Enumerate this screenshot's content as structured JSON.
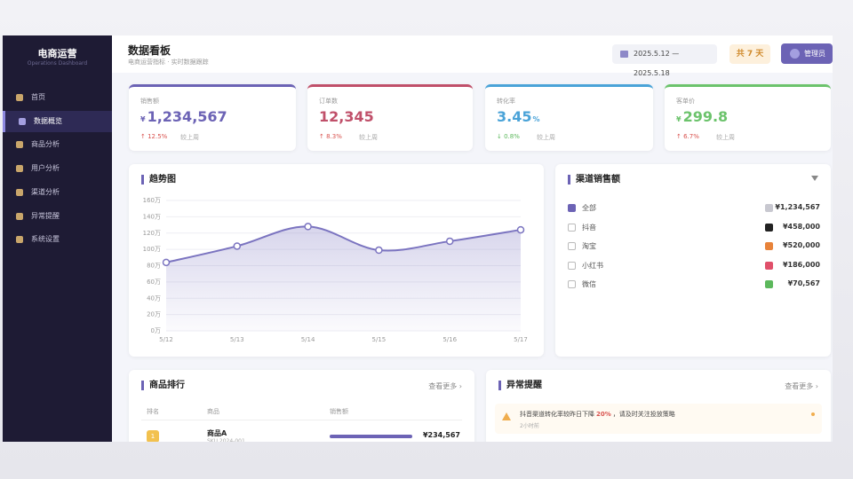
{
  "sidebar": {
    "title": "电商运营",
    "subtitle": "Operations Dashboard",
    "menu": [
      "首页",
      "数据概览",
      "商品分析",
      "用户分析",
      "渠道分析",
      "异常提醒",
      "系统设置"
    ],
    "active": 1
  },
  "header": {
    "title": "数据看板",
    "subtitle": "电商运营指标 · 实时数据跟踪",
    "date_range": "2025.5.12 — 2025.5.18",
    "days": "共 7 天",
    "user": "管理员"
  },
  "kpis": [
    {
      "label": "销售额",
      "prefix": "¥",
      "value": "1,234,567",
      "change": "↑ 12.5%",
      "compare": "较上周",
      "color": "#6c63b5",
      "change_color": "#d9534f"
    },
    {
      "label": "订单数",
      "value": "12,345",
      "change": "↑ 8.3%",
      "compare": "较上周",
      "color": "#c0506a",
      "change_color": "#d9534f"
    },
    {
      "label": "转化率",
      "value": "3.45",
      "suffix": "%",
      "change": "↓ 0.8%",
      "compare": "较上周",
      "color": "#4aa3d8",
      "change_color": "#5cb85c"
    },
    {
      "label": "客单价",
      "prefix": "¥",
      "value": "299.8",
      "change": "↑ 6.7%",
      "compare": "较上周",
      "color": "#6cc36c",
      "change_color": "#d9534f"
    }
  ],
  "trend": {
    "title": "趋势图",
    "x": [
      "5/12",
      "5/13",
      "5/14",
      "5/15",
      "5/16",
      "5/17"
    ],
    "values": [
      84,
      104,
      128,
      99,
      110,
      124
    ],
    "ylim": [
      0,
      160
    ],
    "yticks": [
      {
        "value": 0,
        "label": "0万"
      },
      {
        "value": 20,
        "label": "20万"
      },
      {
        "value": 40,
        "label": "40万"
      },
      {
        "value": 60,
        "label": "60万"
      },
      {
        "value": 80,
        "label": "80万"
      },
      {
        "value": 100,
        "label": "100万"
      },
      {
        "value": 120,
        "label": "120万"
      },
      {
        "value": 140,
        "label": "140万"
      },
      {
        "value": 160,
        "label": "160万"
      }
    ],
    "color": "#7b74c0",
    "grid": true
  },
  "channels": {
    "title": "渠道销售额",
    "items": [
      {
        "name": "全部",
        "amount": "¥1,234,567",
        "checked": true,
        "color": "#c8c8d0"
      },
      {
        "name": "抖音",
        "amount": "¥458,000",
        "checked": false,
        "color": "#222222"
      },
      {
        "name": "淘宝",
        "amount": "¥520,000",
        "checked": false,
        "color": "#e8833a"
      },
      {
        "name": "小红书",
        "amount": "¥186,000",
        "checked": false,
        "color": "#e0506a"
      },
      {
        "name": "微信",
        "amount": "¥70,567",
        "checked": false,
        "color": "#5cb85c"
      }
    ]
  },
  "ranking": {
    "title": "商品排行",
    "more": "查看更多 ›",
    "columns": [
      "排名",
      "商品",
      "销售额"
    ],
    "rows": [
      {
        "rank": "1",
        "name": "商品A",
        "sku": "SKU 2024-001",
        "sales": "¥234,567"
      }
    ]
  },
  "alerts": {
    "title": "异常提醒",
    "more": "查看更多 ›",
    "items": [
      {
        "text": "抖音渠道转化率较昨日下降",
        "highlight": "20%",
        "rest": "，请及时关注投放策略",
        "time": "2小时前"
      }
    ]
  }
}
